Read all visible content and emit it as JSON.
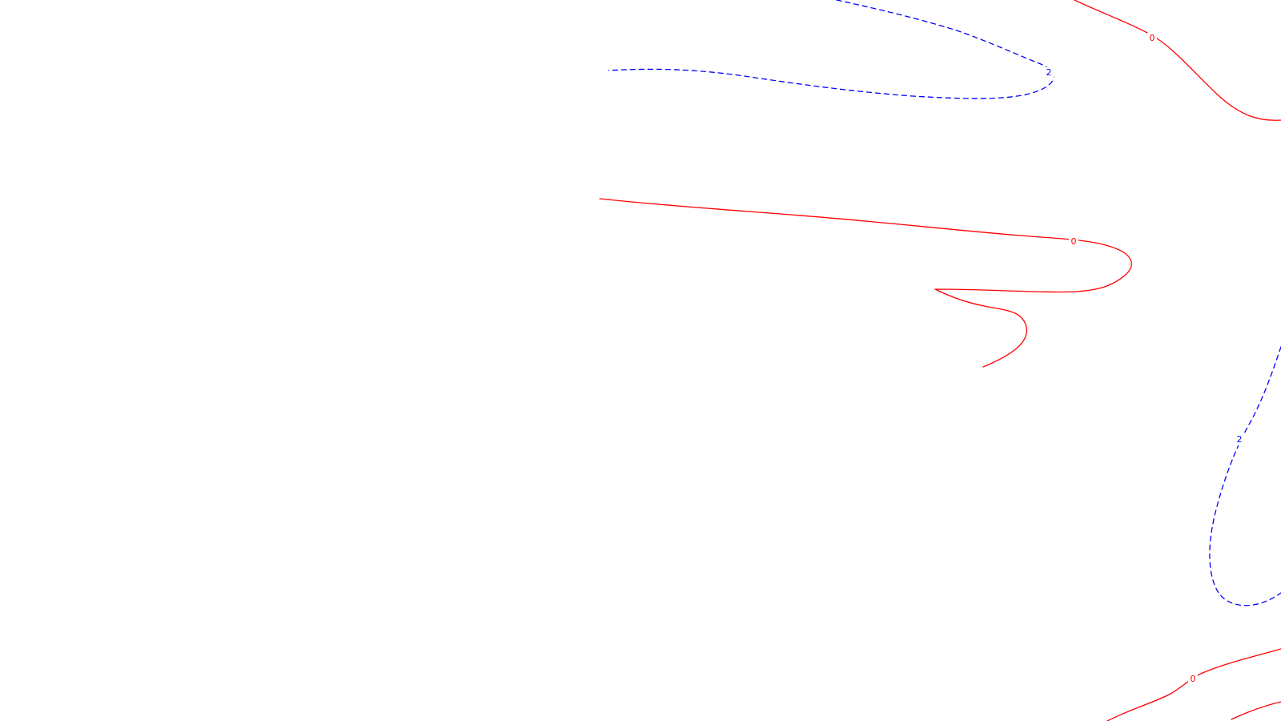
{
  "colors": {
    "background": "#ffffff",
    "zero_level": "#ff0000",
    "positive_level": "#0000ff"
  },
  "contours": [
    {
      "name": "contour-zero-upper-right",
      "level": "0",
      "color": "#ff0000",
      "style": "solid"
    },
    {
      "name": "contour-two-upper",
      "level": "2",
      "color": "#0000ff",
      "style": "dashed"
    },
    {
      "name": "contour-zero-middle",
      "level": "0",
      "color": "#ff0000",
      "style": "solid"
    },
    {
      "name": "contour-two-right",
      "level": "2",
      "color": "#0000ff",
      "style": "dashed"
    },
    {
      "name": "contour-zero-lower-right",
      "level": "0",
      "color": "#ff0000",
      "style": "solid"
    },
    {
      "name": "contour-zero-bottom-corner",
      "level": "0",
      "color": "#ff0000",
      "style": "solid"
    }
  ],
  "labels": [
    {
      "name": "level-label-upper-right",
      "text": "0",
      "color": "#ff0000"
    },
    {
      "name": "level-label-upper-blue",
      "text": "2",
      "color": "#0000ff"
    },
    {
      "name": "level-label-middle",
      "text": "0",
      "color": "#ff0000"
    },
    {
      "name": "level-label-right-blue",
      "text": "2",
      "color": "#0000ff"
    },
    {
      "name": "level-label-lower-right",
      "text": "0",
      "color": "#ff0000"
    }
  ]
}
